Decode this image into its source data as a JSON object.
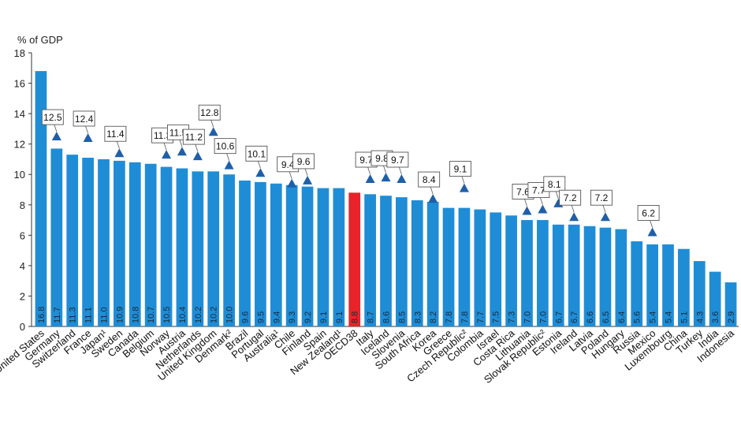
{
  "chart_data": {
    "type": "bar",
    "ylabel": "% of GDP",
    "ylim": [
      0,
      18
    ],
    "yticks": [
      0,
      2,
      4,
      6,
      8,
      10,
      12,
      14,
      16,
      18
    ],
    "grid": false,
    "categories": [
      "United States",
      "Germany",
      "Switzerland",
      "France",
      "Japan¹",
      "Sweden",
      "Canada",
      "Belgium",
      "Norway",
      "Austria",
      "Netherlands",
      "United Kingdom",
      "Denmark²",
      "Brazil",
      "Portugal",
      "Australia¹",
      "Chile",
      "Finland",
      "Spain",
      "New Zealand¹",
      "OECD38",
      "Italy",
      "Iceland",
      "Slovenia",
      "South Africa",
      "Korea",
      "Greece",
      "Czech Republic²",
      "Colombia",
      "Israel",
      "Costa Rica",
      "Lithuania",
      "Slovak Republic²",
      "Estonia",
      "Ireland",
      "Latvia",
      "Poland",
      "Hungary",
      "Russia",
      "Mexico",
      "Luxembourg",
      "China",
      "Turkey",
      "India",
      "Indonesia"
    ],
    "value_labels": [
      "16.8",
      "11.7",
      "11.3",
      "11.1",
      "11.0",
      "10.9",
      "10.8",
      "10.7",
      "10.5",
      "10.4",
      "10.2",
      "10.2",
      "10.0",
      "9.6",
      "9.5",
      "9.4",
      "9.3",
      "9.2",
      "9.1",
      "9.1",
      "8.8",
      "8.7",
      "8.6",
      "8.5",
      "8.3",
      "8.2",
      "7.8",
      "7.8",
      "7.7",
      "7.5",
      "7.3",
      "7.0",
      "7.0",
      "6.7",
      "6.7",
      "6.6",
      "6.5",
      "6.4",
      "5.6",
      "5.4",
      "5.4",
      "5.1",
      "4.3",
      "3.6",
      "2.9"
    ],
    "values": [
      16.8,
      11.7,
      11.3,
      11.1,
      11.0,
      10.9,
      10.8,
      10.7,
      10.5,
      10.4,
      10.2,
      10.2,
      10.0,
      9.6,
      9.5,
      9.4,
      9.3,
      9.2,
      9.1,
      9.1,
      8.8,
      8.7,
      8.6,
      8.5,
      8.3,
      8.2,
      7.8,
      7.8,
      7.7,
      7.5,
      7.3,
      7.0,
      7.0,
      6.7,
      6.7,
      6.6,
      6.5,
      6.4,
      5.6,
      5.4,
      5.4,
      5.1,
      4.3,
      3.6,
      2.9
    ],
    "highlight_index": 20,
    "markers": [
      {
        "index": 1,
        "value": 12.5,
        "label": "12.5"
      },
      {
        "index": 3,
        "value": 12.4,
        "label": "12.4"
      },
      {
        "index": 5,
        "value": 11.4,
        "label": "11.4"
      },
      {
        "index": 8,
        "value": 11.3,
        "label": "11.3"
      },
      {
        "index": 9,
        "value": 11.5,
        "label": "11.5"
      },
      {
        "index": 11,
        "value": 12.8,
        "label": "12.8"
      },
      {
        "index": 10,
        "value": 11.2,
        "label": "11.2"
      },
      {
        "index": 12,
        "value": 10.6,
        "label": "10.6"
      },
      {
        "index": 14,
        "value": 10.1,
        "label": "10.1"
      },
      {
        "index": 16,
        "value": 9.4,
        "label": "9.4"
      },
      {
        "index": 17,
        "value": 9.6,
        "label": "9.6"
      },
      {
        "index": 21,
        "value": 9.7,
        "label": "9.7"
      },
      {
        "index": 22,
        "value": 9.8,
        "label": "9.8"
      },
      {
        "index": 23,
        "value": 9.7,
        "label": "9.7"
      },
      {
        "index": 25,
        "value": 8.4,
        "label": "8.4"
      },
      {
        "index": 27,
        "value": 9.1,
        "label": "9.1"
      },
      {
        "index": 31,
        "value": 7.6,
        "label": "7.6"
      },
      {
        "index": 32,
        "value": 7.7,
        "label": "7.7"
      },
      {
        "index": 33,
        "value": 8.1,
        "label": "8.1"
      },
      {
        "index": 34,
        "value": 7.2,
        "label": "7.2"
      },
      {
        "index": 36,
        "value": 7.2,
        "label": "7.2"
      },
      {
        "index": 39,
        "value": 6.2,
        "label": "6.2"
      }
    ],
    "colors": {
      "bar": "#1f8dd6",
      "highlight": "#e8232a",
      "marker": "#1f5fa8",
      "axis": "#333333",
      "bar_label": "#1b2a3a"
    }
  }
}
